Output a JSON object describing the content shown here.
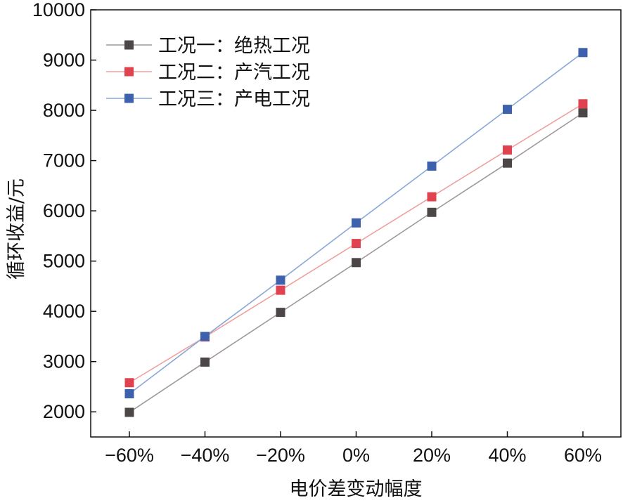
{
  "chart_data": {
    "type": "line",
    "title": "",
    "xlabel": "电价差变动幅度",
    "ylabel": "循环收益/元",
    "categories": [
      "−60%",
      "−40%",
      "−20%",
      "0%",
      "20%",
      "40%",
      "60%"
    ],
    "ylim": [
      1500,
      10000
    ],
    "yticks": [
      2000,
      3000,
      4000,
      5000,
      6000,
      7000,
      8000,
      9000,
      10000
    ],
    "legend_position": "top-left",
    "grid": false,
    "series": [
      {
        "name": "工况一：绝热工况",
        "line_color": "#a09898",
        "marker_color": "#4d4646",
        "values": [
          1990,
          2990,
          3980,
          4970,
          5970,
          6950,
          7950
        ]
      },
      {
        "name": "工况二：产汽工况",
        "line_color": "#f0a0a0",
        "marker_color": "#e0434f",
        "values": [
          2580,
          3490,
          4420,
          5350,
          6280,
          7210,
          8130
        ]
      },
      {
        "name": "工况三：产电工况",
        "line_color": "#8aa8d8",
        "marker_color": "#3d61ad",
        "values": [
          2360,
          3500,
          4620,
          5760,
          6890,
          8020,
          9150
        ]
      }
    ]
  }
}
